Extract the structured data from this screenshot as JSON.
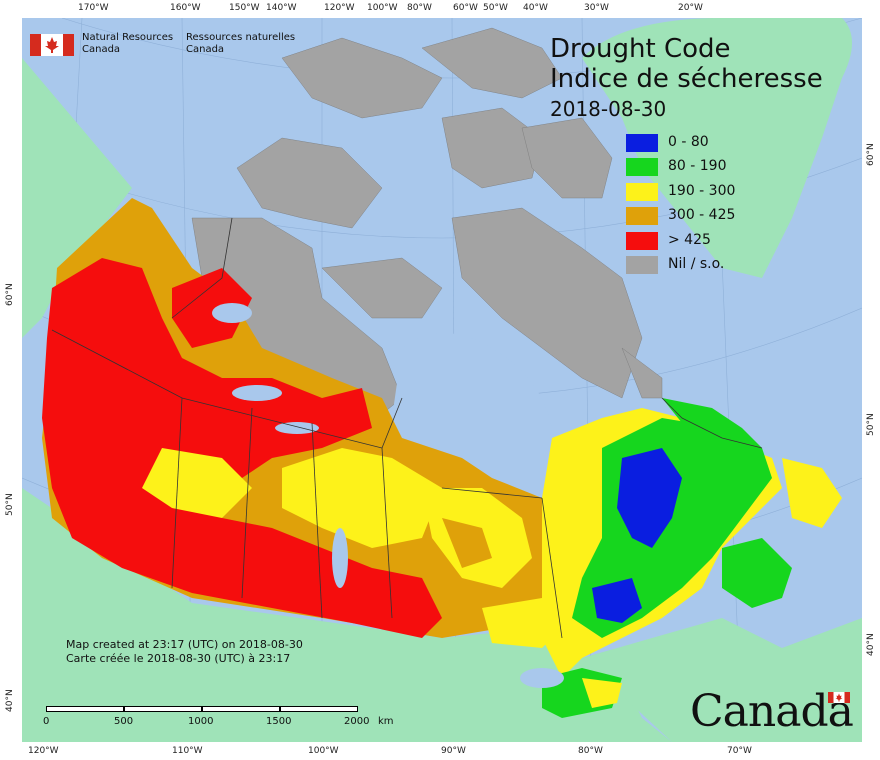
{
  "title": {
    "line1": "Drought Code",
    "line2": "Indice de sécheresse",
    "date": "2018-08-30"
  },
  "legend": [
    {
      "label": "0 - 80",
      "color": "#0a1ee0"
    },
    {
      "label": "80 - 190",
      "color": "#16d61e"
    },
    {
      "label": "190 - 300",
      "color": "#fdf21a"
    },
    {
      "label": "300 - 425",
      "color": "#dfa10a"
    },
    {
      "label": "> 425",
      "color": "#f50d0d"
    },
    {
      "label": "Nil / s.o.",
      "color": "#a3a3a3"
    }
  ],
  "agency": {
    "en_line1": "Natural Resources",
    "en_line2": "Canada",
    "fr_line1": "Ressources naturelles",
    "fr_line2": "Canada"
  },
  "created": {
    "en": "Map created at 23:17 (UTC) on 2018-08-30",
    "fr": "Carte créée le 2018-08-30 (UTC) à 23:17"
  },
  "scale": {
    "labels": [
      "0",
      "500",
      "1000",
      "1500",
      "2000"
    ],
    "unit": "km"
  },
  "wordmark": "Canada",
  "top_longitudes": [
    "170°W",
    "160°W",
    "150°W",
    "140°W",
    "120°W",
    "100°W",
    "80°W",
    "60°W",
    "50°W",
    "40°W",
    "30°W",
    "20°W"
  ],
  "bottom_longitudes": [
    "120°W",
    "110°W",
    "100°W",
    "90°W",
    "80°W",
    "70°W"
  ],
  "left_latitudes": [
    "60°N",
    "50°N",
    "40°N"
  ],
  "right_latitudes": [
    "60°N",
    "50°N",
    "40°N"
  ],
  "colors": {
    "ocean": "#a9c8ec",
    "land_outside": "#9fe3b8",
    "border": "#333333"
  }
}
